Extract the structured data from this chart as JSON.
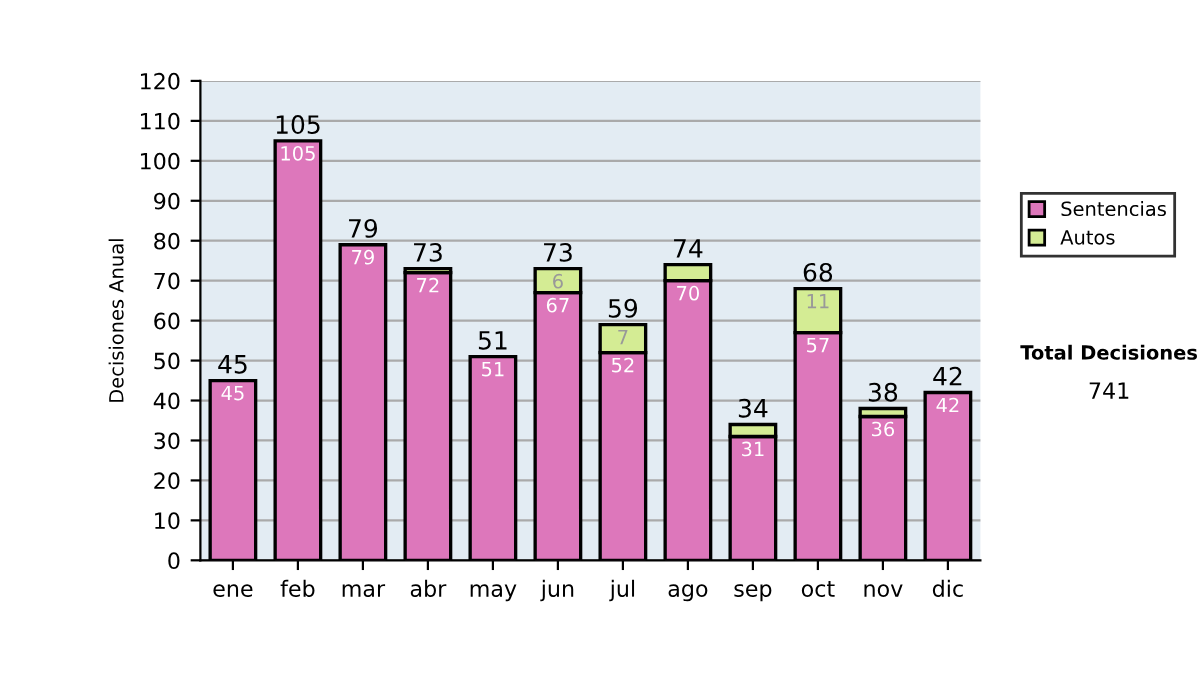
{
  "chart_data": {
    "type": "bar",
    "ylabel": "Decisiones Anual",
    "categories": [
      "ene",
      "feb",
      "mar",
      "abr",
      "may",
      "jun",
      "jul",
      "ago",
      "sep",
      "oct",
      "nov",
      "dic"
    ],
    "stacked": true,
    "series": [
      {
        "name": "Sentencias",
        "color": "#dd77bb",
        "values": [
          45,
          105,
          79,
          72,
          51,
          67,
          52,
          70,
          31,
          57,
          36,
          42
        ],
        "value_labels": [
          "45",
          "105",
          "79",
          "72",
          "51",
          "67",
          "52",
          "70",
          "31",
          "57",
          "36",
          "42"
        ]
      },
      {
        "name": "Autos",
        "color": "#d4ec94",
        "values": [
          null,
          null,
          null,
          1,
          null,
          6,
          7,
          4,
          3,
          11,
          2,
          null
        ],
        "value_labels": [
          null,
          null,
          null,
          null,
          null,
          "6",
          "7",
          null,
          null,
          "11",
          null,
          null
        ]
      }
    ],
    "totals": [
      "45",
      "105",
      "79",
      "73",
      "51",
      "73",
      "59",
      "74",
      "34",
      "68",
      "38",
      "42"
    ],
    "ylim": [
      0,
      120
    ],
    "yticks": [
      0,
      10,
      20,
      30,
      40,
      50,
      60,
      70,
      80,
      90,
      100,
      110,
      120
    ],
    "grid": "y",
    "legend": "right",
    "annotations": [
      "Total Decisiones",
      "741"
    ]
  }
}
